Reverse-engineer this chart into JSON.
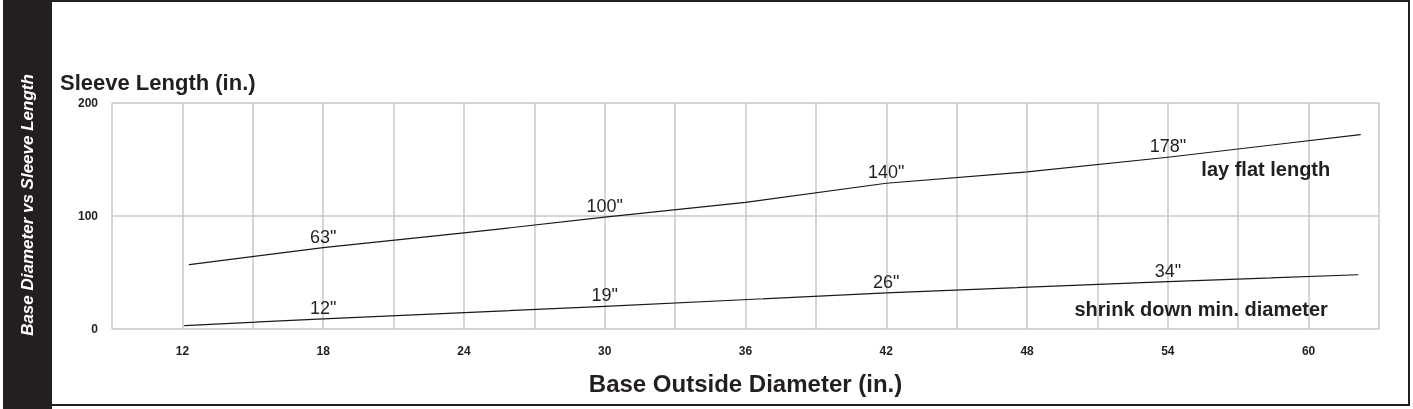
{
  "chart_data": {
    "type": "line",
    "title": "Base Diameter vs Sleeve Length",
    "ylabel": "Sleeve Length (in.)",
    "xlabel": "Base Outside Diameter (in.)",
    "series": [
      {
        "name": "lay flat length",
        "color": "#1a1a1a",
        "x": [
          12.3,
          18,
          24,
          30,
          36,
          42,
          48,
          54,
          62.2
        ],
        "values": [
          57,
          72,
          85,
          99,
          112,
          129,
          139,
          152,
          172
        ]
      },
      {
        "name": "shrink down min. diameter",
        "color": "#1a1a1a",
        "x": [
          12.1,
          18,
          30,
          42,
          54,
          62.1
        ],
        "values": [
          3,
          9,
          20,
          32,
          42,
          48
        ]
      }
    ],
    "annotations": [
      {
        "text": "63\"",
        "x": 18,
        "y": 72
      },
      {
        "text": "100\"",
        "x": 30,
        "y": 99
      },
      {
        "text": "140\"",
        "x": 42,
        "y": 129
      },
      {
        "text": "178\"",
        "x": 54,
        "y": 152
      },
      {
        "text": "12\"",
        "x": 18,
        "y": 9
      },
      {
        "text": "19\"",
        "x": 30,
        "y": 20
      },
      {
        "text": "26\"",
        "x": 42,
        "y": 32
      },
      {
        "text": "34\"",
        "x": 54,
        "y": 42
      }
    ],
    "xlim": [
      9,
      63
    ],
    "xticks": [
      12,
      {
        "value": 15,
        "label": null
      },
      18,
      {
        "value": 21,
        "label": null
      },
      24,
      {
        "value": 27,
        "label": null
      },
      30,
      {
        "value": 33,
        "label": null
      },
      36,
      {
        "value": 39,
        "label": null
      },
      42,
      {
        "value": 45,
        "label": null
      },
      48,
      {
        "value": 51,
        "label": null
      },
      54,
      {
        "value": 57,
        "label": null
      },
      60
    ],
    "ylim": [
      0,
      200
    ],
    "yticks": [
      0,
      100,
      200
    ],
    "grid": true,
    "legend": false,
    "marker": "none",
    "line_style": "solid"
  }
}
